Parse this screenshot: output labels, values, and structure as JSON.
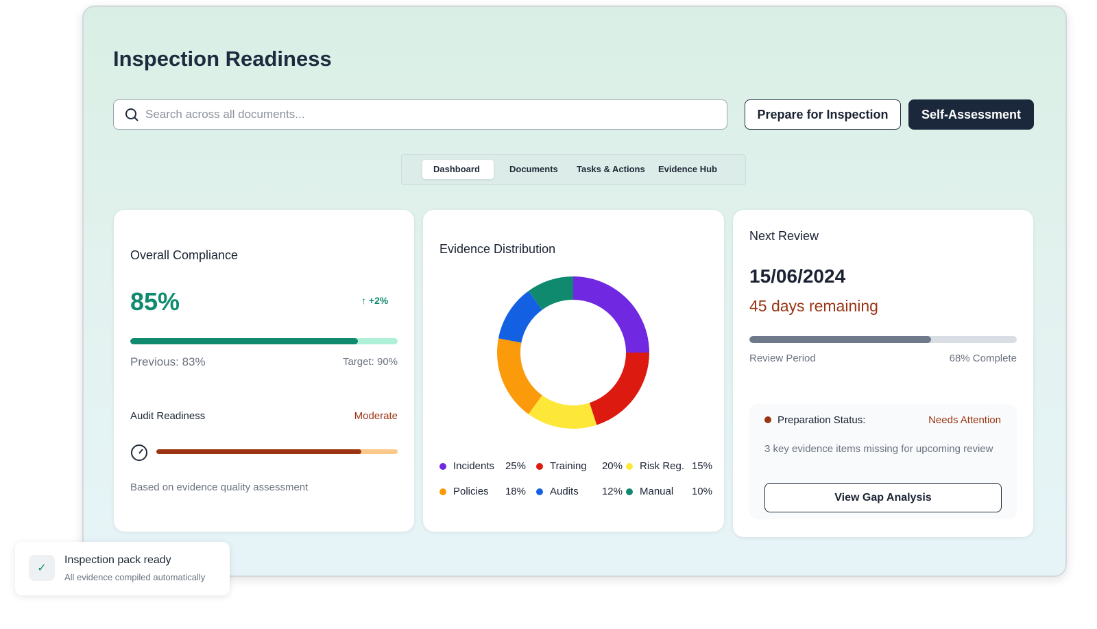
{
  "title": "Inspection Readiness",
  "search_placeholder": "Search across all documents...",
  "buttons": [
    "Prepare for Inspection",
    "Self-Assessment"
  ],
  "tabs": [
    "Dashboard",
    "Documents",
    "Tasks & Actions",
    "Evidence Hub"
  ],
  "compliance": {
    "title": "Overall Compliance",
    "value": 85,
    "label": "85%",
    "change": "+2%",
    "previous": "Previous: 83%",
    "target": "Target: 90%",
    "audit_title": "Audit Readiness",
    "audit_level": "Moderate",
    "audit_value": 85,
    "note": "Based on evidence quality assessment"
  },
  "evidence": {
    "type": "pie",
    "title": "Evidence Distribution",
    "categories": [
      "Incidents",
      "Training",
      "Risk Reg.",
      "Policies",
      "Audits",
      "Manual"
    ],
    "values": [
      25,
      20,
      15,
      18,
      12,
      10
    ],
    "value_labels": [
      "25%",
      "20%",
      "15%",
      "18%",
      "12%",
      "10%"
    ],
    "colors": [
      "#7029e0",
      "#dc1a0f",
      "#fde83a",
      "#fb9a0b",
      "#1360e2",
      "#0f8a6e"
    ]
  },
  "review": {
    "title": "Next Review",
    "date": "15/06/2024",
    "remaining": "45 days remaining",
    "period_label": "Review Period",
    "value": 68,
    "value_label": "68% Complete",
    "status_label": "Preparation Status:",
    "status": "Needs Attention",
    "message": "3 key evidence items missing for upcoming review",
    "action": "View Gap Analysis"
  },
  "toast": {
    "title": "Inspection pack ready",
    "message": "All evidence compiled automatically"
  }
}
